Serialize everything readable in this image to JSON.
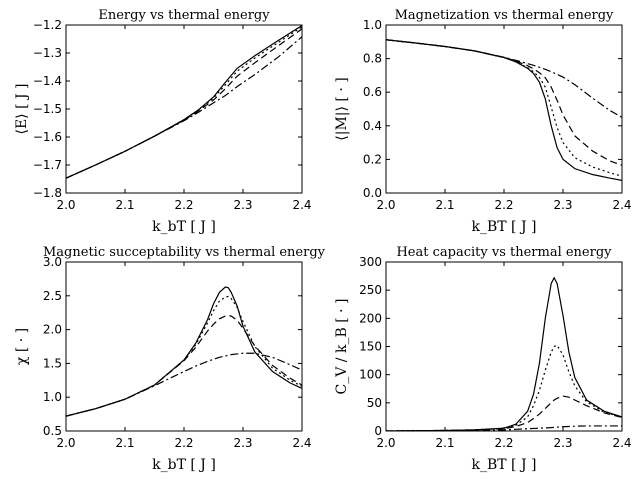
{
  "chart_data": [
    {
      "type": "line",
      "title": "Energy vs thermal energy",
      "xlabel": "k_bT   [ J ]",
      "ylabel": "⟨E⟩   [ J ]",
      "xlim": [
        2.0,
        2.4
      ],
      "ylim": [
        -1.8,
        -1.2
      ],
      "xticks": [
        "2.0",
        "2.1",
        "2.2",
        "2.3",
        "2.4"
      ],
      "yticks": [
        "−1.8",
        "−1.7",
        "−1.6",
        "−1.5",
        "−1.4",
        "−1.3",
        "−1.2"
      ],
      "x": [
        2.0,
        2.05,
        2.1,
        2.15,
        2.2,
        2.225,
        2.25,
        2.27,
        2.29,
        2.32,
        2.36,
        2.4
      ],
      "series": [
        {
          "style": "solid",
          "values": [
            -1.747,
            -1.7,
            -1.651,
            -1.597,
            -1.538,
            -1.502,
            -1.457,
            -1.405,
            -1.355,
            -1.31,
            -1.255,
            -1.202
          ]
        },
        {
          "style": "dotted",
          "values": [
            -1.747,
            -1.7,
            -1.651,
            -1.597,
            -1.538,
            -1.503,
            -1.461,
            -1.414,
            -1.365,
            -1.318,
            -1.262,
            -1.207
          ]
        },
        {
          "style": "dashed",
          "values": [
            -1.747,
            -1.7,
            -1.651,
            -1.597,
            -1.54,
            -1.506,
            -1.468,
            -1.428,
            -1.383,
            -1.335,
            -1.274,
            -1.214
          ]
        },
        {
          "style": "dashdot",
          "values": [
            -1.747,
            -1.7,
            -1.651,
            -1.597,
            -1.542,
            -1.511,
            -1.478,
            -1.452,
            -1.42,
            -1.377,
            -1.314,
            -1.242
          ]
        }
      ]
    },
    {
      "type": "line",
      "title": "Magnetization vs thermal energy",
      "xlabel": "k_BT   [ J ]",
      "ylabel": "⟨|M|⟩   [ · ]",
      "xlim": [
        2.0,
        2.4
      ],
      "ylim": [
        0.0,
        1.0
      ],
      "xticks": [
        "2.0",
        "2.1",
        "2.2",
        "2.3",
        "2.4"
      ],
      "yticks": [
        "0.0",
        "0.2",
        "0.4",
        "0.6",
        "0.8",
        "1.0"
      ],
      "x": [
        2.0,
        2.05,
        2.1,
        2.15,
        2.2,
        2.22,
        2.24,
        2.25,
        2.26,
        2.27,
        2.28,
        2.29,
        2.3,
        2.32,
        2.35,
        2.38,
        2.4
      ],
      "series": [
        {
          "style": "solid",
          "values": [
            0.912,
            0.893,
            0.872,
            0.846,
            0.806,
            0.781,
            0.742,
            0.712,
            0.66,
            0.56,
            0.4,
            0.27,
            0.2,
            0.145,
            0.11,
            0.088,
            0.075
          ]
        },
        {
          "style": "dotted",
          "values": [
            0.912,
            0.893,
            0.872,
            0.846,
            0.806,
            0.781,
            0.746,
            0.722,
            0.688,
            0.63,
            0.51,
            0.39,
            0.3,
            0.21,
            0.155,
            0.12,
            0.1
          ]
        },
        {
          "style": "dashed",
          "values": [
            0.912,
            0.893,
            0.872,
            0.846,
            0.807,
            0.786,
            0.758,
            0.739,
            0.716,
            0.686,
            0.63,
            0.552,
            0.465,
            0.34,
            0.25,
            0.19,
            0.165
          ]
        },
        {
          "style": "dashdot",
          "values": [
            0.912,
            0.893,
            0.872,
            0.846,
            0.808,
            0.79,
            0.77,
            0.76,
            0.748,
            0.736,
            0.722,
            0.706,
            0.69,
            0.645,
            0.565,
            0.49,
            0.45
          ]
        }
      ]
    },
    {
      "type": "line",
      "title": "Magnetic succeptability vs thermal energy",
      "xlabel": "k_bT   [ J ]",
      "ylabel": "χ   [ · ]",
      "xlim": [
        2.0,
        2.4
      ],
      "ylim": [
        0.5,
        3.0
      ],
      "xticks": [
        "2.0",
        "2.1",
        "2.2",
        "2.3",
        "2.4"
      ],
      "yticks": [
        "0.5",
        "1.0",
        "1.5",
        "2.0",
        "2.5",
        "3.0"
      ],
      "x": [
        2.0,
        2.05,
        2.1,
        2.15,
        2.2,
        2.22,
        2.24,
        2.25,
        2.26,
        2.27,
        2.275,
        2.28,
        2.29,
        2.3,
        2.32,
        2.35,
        2.38,
        2.4
      ],
      "series": [
        {
          "style": "solid",
          "values": [
            0.72,
            0.83,
            0.97,
            1.18,
            1.55,
            1.8,
            2.15,
            2.38,
            2.55,
            2.63,
            2.62,
            2.55,
            2.35,
            2.05,
            1.67,
            1.38,
            1.21,
            1.13
          ]
        },
        {
          "style": "dotted",
          "values": [
            0.72,
            0.83,
            0.97,
            1.18,
            1.55,
            1.78,
            2.1,
            2.28,
            2.42,
            2.48,
            2.49,
            2.46,
            2.33,
            2.12,
            1.75,
            1.43,
            1.25,
            1.16
          ]
        },
        {
          "style": "dashed",
          "values": [
            0.72,
            0.83,
            0.97,
            1.18,
            1.54,
            1.74,
            1.98,
            2.08,
            2.16,
            2.2,
            2.21,
            2.2,
            2.14,
            2.02,
            1.76,
            1.47,
            1.28,
            1.18
          ]
        },
        {
          "style": "dashdot",
          "values": [
            0.72,
            0.83,
            0.97,
            1.17,
            1.38,
            1.46,
            1.53,
            1.56,
            1.59,
            1.61,
            1.62,
            1.63,
            1.64,
            1.65,
            1.65,
            1.59,
            1.48,
            1.4
          ]
        }
      ]
    },
    {
      "type": "line",
      "title": "Heat capacity vs thermal energy",
      "xlabel": "k_BT   [ J ]",
      "ylabel": "C_V / k_B   [ · ]",
      "xlim": [
        2.0,
        2.4
      ],
      "ylim": [
        0,
        300
      ],
      "xticks": [
        "2.0",
        "2.1",
        "2.2",
        "2.3",
        "2.4"
      ],
      "yticks": [
        "0",
        "50",
        "100",
        "150",
        "200",
        "250",
        "300"
      ],
      "x": [
        2.0,
        2.1,
        2.15,
        2.2,
        2.22,
        2.24,
        2.25,
        2.26,
        2.27,
        2.28,
        2.285,
        2.29,
        2.3,
        2.31,
        2.32,
        2.34,
        2.37,
        2.4
      ],
      "series": [
        {
          "style": "solid",
          "values": [
            0,
            1,
            2,
            5,
            12,
            35,
            65,
            120,
            200,
            262,
            272,
            262,
            205,
            140,
            95,
            55,
            35,
            25
          ]
        },
        {
          "style": "dotted",
          "values": [
            0,
            1,
            2,
            5,
            10,
            25,
            45,
            72,
            108,
            140,
            150,
            152,
            135,
            105,
            80,
            52,
            33,
            25
          ]
        },
        {
          "style": "dashed",
          "values": [
            0,
            1,
            2,
            4,
            8,
            15,
            22,
            30,
            40,
            50,
            55,
            58,
            62,
            60,
            55,
            45,
            32,
            24
          ]
        },
        {
          "style": "dashdot",
          "values": [
            0,
            1,
            1,
            2,
            3,
            4,
            4.5,
            5,
            5.5,
            6,
            6.5,
            7,
            7.5,
            8,
            8.5,
            9,
            9,
            9
          ]
        }
      ]
    }
  ]
}
